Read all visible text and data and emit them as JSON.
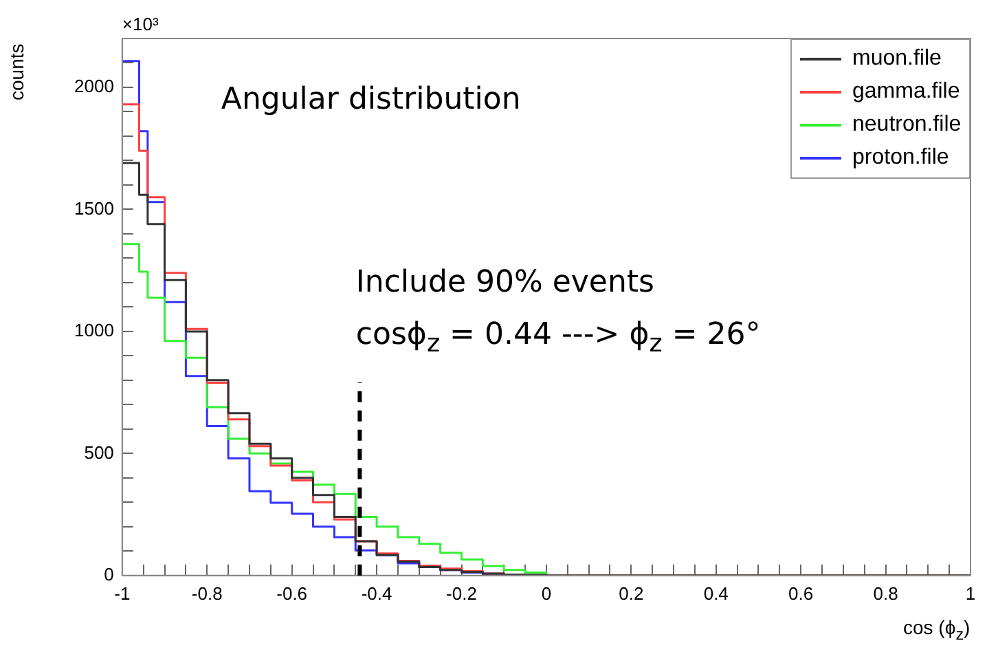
{
  "chart_data": {
    "type": "histogram",
    "xlabel": "cos (ϕ$_{z}$)",
    "ylabel": "counts",
    "bins": [
      -1,
      -0.96,
      -0.94,
      -0.9,
      -0.85,
      -0.8,
      -0.75,
      -0.7,
      -0.65,
      -0.6,
      -0.55,
      -0.5,
      -0.45,
      -0.4,
      -0.35,
      -0.3,
      -0.25,
      -0.2,
      -0.15,
      -0.1,
      -0.05,
      0,
      1
    ],
    "series": [
      {
        "name": "muon.file",
        "color": "#333333",
        "values": [
          1690,
          1560,
          1440,
          1210,
          1000,
          800,
          665,
          540,
          480,
          400,
          330,
          240,
          140,
          85,
          57,
          35,
          23,
          15,
          8,
          4,
          2,
          0
        ]
      },
      {
        "name": "gamma.file",
        "color": "#ff4040",
        "values": [
          1930,
          1740,
          1550,
          1240,
          1010,
          790,
          640,
          530,
          450,
          390,
          300,
          230,
          140,
          90,
          60,
          40,
          28,
          18,
          8,
          4,
          2,
          0
        ]
      },
      {
        "name": "neutron.file",
        "color": "#33ee33",
        "values": [
          1358,
          1245,
          1138,
          961,
          892,
          690,
          560,
          500,
          459,
          425,
          372,
          334,
          240,
          200,
          157,
          130,
          93,
          66,
          39,
          23,
          12,
          0
        ]
      },
      {
        "name": "proton.file",
        "color": "#3333ff",
        "values": [
          2108,
          1820,
          1530,
          1120,
          817,
          612,
          480,
          345,
          298,
          253,
          200,
          157,
          103,
          83,
          50,
          35,
          23,
          12,
          6,
          3,
          1,
          0
        ]
      }
    ],
    "xlim": [
      -1,
      1
    ],
    "xticks": [
      -1,
      {
        "value": -0.95,
        "label": null
      },
      {
        "value": -0.9,
        "label": null
      },
      {
        "value": -0.85,
        "label": null
      },
      -0.8,
      {
        "value": -0.75,
        "label": null
      },
      {
        "value": -0.7,
        "label": null
      },
      {
        "value": -0.65,
        "label": null
      },
      -0.6,
      {
        "value": -0.55,
        "label": null
      },
      {
        "value": -0.5,
        "label": null
      },
      {
        "value": -0.45,
        "label": null
      },
      -0.4,
      {
        "value": -0.35,
        "label": null
      },
      {
        "value": -0.3,
        "label": null
      },
      {
        "value": -0.25,
        "label": null
      },
      -0.2,
      {
        "value": -0.15,
        "label": null
      },
      {
        "value": -0.1,
        "label": null
      },
      {
        "value": -0.05,
        "label": null
      },
      0,
      {
        "value": 0.05,
        "label": null
      },
      {
        "value": 0.1,
        "label": null
      },
      {
        "value": 0.15,
        "label": null
      },
      0.2,
      {
        "value": 0.25,
        "label": null
      },
      {
        "value": 0.3,
        "label": null
      },
      {
        "value": 0.35,
        "label": null
      },
      0.4,
      {
        "value": 0.45,
        "label": null
      },
      {
        "value": 0.5,
        "label": null
      },
      {
        "value": 0.55,
        "label": null
      },
      0.6,
      {
        "value": 0.65,
        "label": null
      },
      {
        "value": 0.7,
        "label": null
      },
      {
        "value": 0.75,
        "label": null
      },
      0.8,
      {
        "value": 0.85,
        "label": null
      },
      {
        "value": 0.9,
        "label": null
      },
      {
        "value": 0.95,
        "label": null
      },
      1
    ],
    "ylim": [
      0,
      2200
    ],
    "yticks": [
      0,
      {
        "value": 100,
        "label": null
      },
      {
        "value": 200,
        "label": null
      },
      {
        "value": 300,
        "label": null
      },
      {
        "value": 400,
        "label": null
      },
      500,
      {
        "value": 600,
        "label": null
      },
      {
        "value": 700,
        "label": null
      },
      {
        "value": 800,
        "label": null
      },
      {
        "value": 900,
        "label": null
      },
      1000,
      {
        "value": 1100,
        "label": null
      },
      {
        "value": 1200,
        "label": null
      },
      {
        "value": 1300,
        "label": null
      },
      {
        "value": 1400,
        "label": null
      },
      1500,
      {
        "value": 1600,
        "label": null
      },
      {
        "value": 1700,
        "label": null
      },
      {
        "value": 1800,
        "label": null
      },
      {
        "value": 1900,
        "label": null
      },
      2000,
      {
        "value": 2100,
        "label": null
      }
    ],
    "ref_lines": [
      {
        "axis": "x",
        "value": -0.44,
        "color": "#000000",
        "line_style": "dashed"
      }
    ],
    "legend": "top right",
    "annotations": [
      "×10³",
      "Angular distribution",
      "Include 90% events",
      "cosϕ$_{z}$ = 0.44  ---> ϕ$_{z}$ = 26°"
    ]
  }
}
